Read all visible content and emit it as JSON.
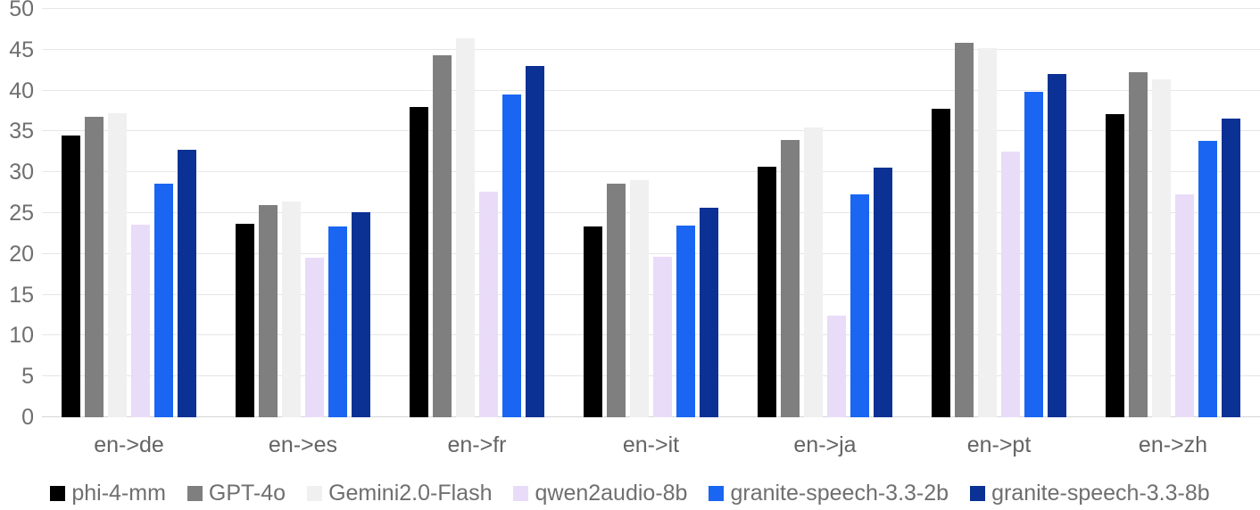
{
  "chart_data": {
    "type": "bar",
    "title": "",
    "xlabel": "",
    "ylabel": "",
    "categories": [
      "en->de",
      "en->es",
      "en->fr",
      "en->it",
      "en->ja",
      "en->pt",
      "en->zh"
    ],
    "series": [
      {
        "name": "phi-4-mm",
        "color": "#000000",
        "values": [
          34.5,
          23.7,
          38.0,
          23.4,
          30.7,
          37.8,
          37.1
        ]
      },
      {
        "name": "GPT-4o",
        "color": "#7f7f7f",
        "values": [
          36.8,
          26.0,
          44.3,
          28.6,
          34.0,
          45.8,
          42.2
        ]
      },
      {
        "name": "Gemini2.0-Flash",
        "color": "#f0f0f0",
        "values": [
          37.2,
          26.4,
          46.4,
          29.0,
          35.5,
          45.2,
          41.4
        ]
      },
      {
        "name": "qwen2audio-8b",
        "color": "#e9dcf8",
        "values": [
          23.6,
          19.5,
          27.6,
          19.6,
          12.4,
          32.5,
          27.3
        ]
      },
      {
        "name": "granite-speech-3.3-2b",
        "color": "#1a66f2",
        "values": [
          28.6,
          23.4,
          39.5,
          23.5,
          27.3,
          39.9,
          33.8
        ]
      },
      {
        "name": "granite-speech-3.3-8b",
        "color": "#0b3194",
        "values": [
          32.7,
          25.1,
          43.0,
          25.7,
          30.6,
          42.0,
          36.6
        ]
      }
    ],
    "y_ticks": [
      0,
      5,
      10,
      15,
      20,
      25,
      30,
      35,
      40,
      45,
      50
    ],
    "ylim": [
      0,
      50
    ],
    "grid": true,
    "legend_position": "bottom",
    "tick_color": "#6f6f6f",
    "grid_color": "#e6e6e6"
  }
}
